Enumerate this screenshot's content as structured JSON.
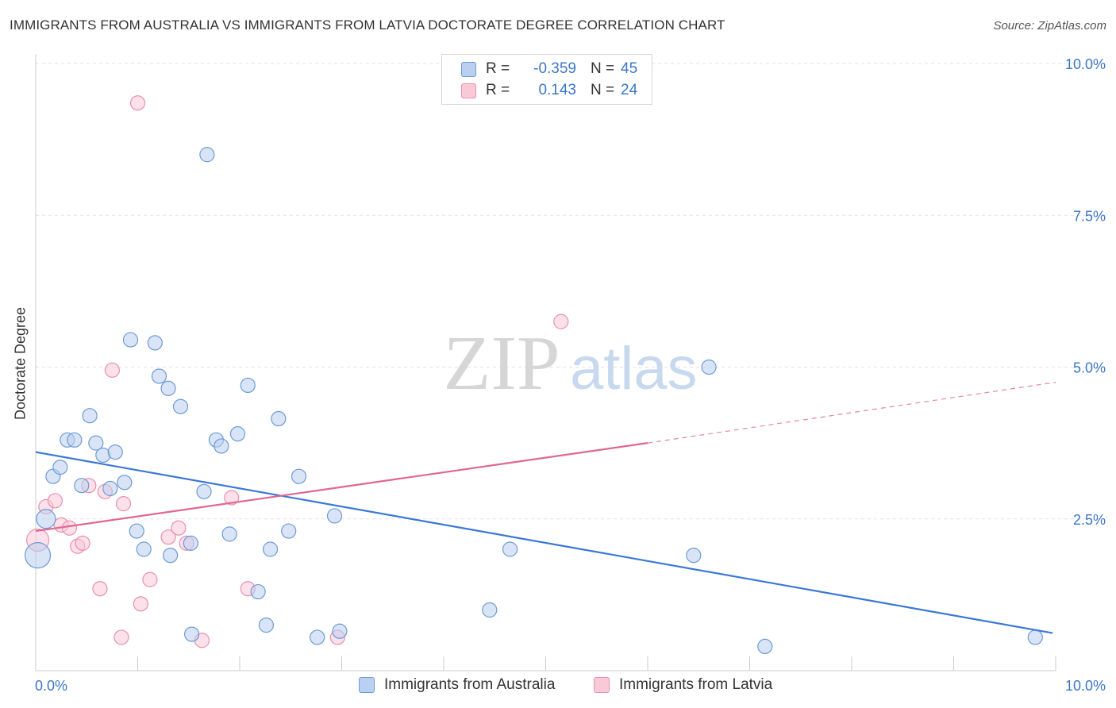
{
  "title": "IMMIGRANTS FROM AUSTRALIA VS IMMIGRANTS FROM LATVIA DOCTORATE DEGREE CORRELATION CHART",
  "source": "Source: ZipAtlas.com",
  "watermark": {
    "zip": "ZIP",
    "atlas": "atlas"
  },
  "legend": {
    "r_label": "R =",
    "n_label": "N =",
    "rows": [
      {
        "r": "-0.359",
        "n": "45",
        "fill": "#b9d0f0",
        "stroke": "#6d9ad6"
      },
      {
        "r": "0.143",
        "n": "24",
        "fill": "#f9c9d8",
        "stroke": "#e890ac"
      }
    ]
  },
  "bottom_legend": {
    "australia": "Immigrants from Australia",
    "latvia": "Immigrants from Latvia"
  },
  "chart_data": {
    "type": "scatter",
    "title": "IMMIGRANTS FROM AUSTRALIA VS IMMIGRANTS FROM LATVIA DOCTORATE DEGREE CORRELATION CHART",
    "xlabel": "",
    "ylabel": "Doctorate Degree",
    "xlim": [
      0,
      10
    ],
    "ylim": [
      0,
      10
    ],
    "x_tick_labels": [
      {
        "value": 0,
        "label": "0.0%"
      },
      {
        "value": 10,
        "label": "10.0%"
      }
    ],
    "y_tick_labels": [
      {
        "value": 2.5,
        "label": "2.5%"
      },
      {
        "value": 5.0,
        "label": "5.0%"
      },
      {
        "value": 7.5,
        "label": "7.5%"
      },
      {
        "value": 10.0,
        "label": "10.0%"
      }
    ],
    "series": [
      {
        "name": "Immigrants from Australia",
        "color": "#6d9ad6",
        "fill": "#b9d0f0",
        "line_color": "#3a78d4",
        "points": [
          [
            0.02,
            1.9,
            16
          ],
          [
            0.1,
            2.5,
            12
          ],
          [
            0.17,
            3.2,
            9
          ],
          [
            0.24,
            3.35,
            9
          ],
          [
            0.31,
            3.8,
            9
          ],
          [
            0.38,
            3.8,
            9
          ],
          [
            0.45,
            3.05,
            9
          ],
          [
            0.53,
            4.2,
            9
          ],
          [
            0.59,
            3.75,
            9
          ],
          [
            0.66,
            3.55,
            9
          ],
          [
            0.73,
            3.0,
            9
          ],
          [
            0.78,
            3.6,
            9
          ],
          [
            0.87,
            3.1,
            9
          ],
          [
            0.93,
            5.45,
            9
          ],
          [
            0.99,
            2.3,
            9
          ],
          [
            1.06,
            2.0,
            9
          ],
          [
            1.17,
            5.4,
            9
          ],
          [
            1.21,
            4.85,
            9
          ],
          [
            1.3,
            4.65,
            9
          ],
          [
            1.32,
            1.9,
            9
          ],
          [
            1.42,
            4.35,
            9
          ],
          [
            1.52,
            2.1,
            9
          ],
          [
            1.53,
            0.6,
            9
          ],
          [
            1.65,
            2.95,
            9
          ],
          [
            1.68,
            8.5,
            9
          ],
          [
            1.77,
            3.8,
            9
          ],
          [
            1.82,
            3.7,
            9
          ],
          [
            1.9,
            2.25,
            9
          ],
          [
            1.98,
            3.9,
            9
          ],
          [
            2.08,
            4.7,
            9
          ],
          [
            2.18,
            1.3,
            9
          ],
          [
            2.26,
            0.75,
            9
          ],
          [
            2.3,
            2.0,
            9
          ],
          [
            2.38,
            4.15,
            9
          ],
          [
            2.48,
            2.3,
            9
          ],
          [
            2.58,
            3.2,
            9
          ],
          [
            2.76,
            0.55,
            9
          ],
          [
            2.93,
            2.55,
            9
          ],
          [
            2.98,
            0.65,
            9
          ],
          [
            4.45,
            1.0,
            9
          ],
          [
            4.65,
            2.0,
            9
          ],
          [
            6.45,
            1.9,
            9
          ],
          [
            6.6,
            5.0,
            9
          ],
          [
            7.15,
            0.4,
            9
          ],
          [
            9.8,
            0.55,
            9
          ]
        ],
        "trend": {
          "x_start": 0.0,
          "y_start": 3.6,
          "x_end": 9.97,
          "y_end": 0.62
        }
      },
      {
        "name": "Immigrants from Latvia",
        "color": "#e890ac",
        "fill": "#f9c9d8",
        "line_color": "#e0678f",
        "points": [
          [
            0.02,
            2.15,
            14
          ],
          [
            0.1,
            2.7,
            9
          ],
          [
            0.19,
            2.8,
            9
          ],
          [
            0.25,
            2.4,
            9
          ],
          [
            0.33,
            2.35,
            9
          ],
          [
            0.41,
            2.05,
            9
          ],
          [
            0.46,
            2.1,
            9
          ],
          [
            0.52,
            3.05,
            9
          ],
          [
            0.63,
            1.35,
            9
          ],
          [
            0.68,
            2.95,
            9
          ],
          [
            0.75,
            4.95,
            9
          ],
          [
            0.84,
            0.55,
            9
          ],
          [
            0.86,
            2.75,
            9
          ],
          [
            1.0,
            9.35,
            9
          ],
          [
            1.03,
            1.1,
            9
          ],
          [
            1.12,
            1.5,
            9
          ],
          [
            1.3,
            2.2,
            9
          ],
          [
            1.4,
            2.35,
            9
          ],
          [
            1.48,
            2.1,
            9
          ],
          [
            1.63,
            0.5,
            9
          ],
          [
            1.92,
            2.85,
            9
          ],
          [
            2.08,
            1.35,
            9
          ],
          [
            2.96,
            0.55,
            9
          ],
          [
            5.15,
            5.75,
            9
          ]
        ],
        "trend": {
          "x_start": 0.0,
          "y_start": 2.3,
          "x_end": 6.0,
          "y_end": 3.75,
          "dash_to_x": 10.0,
          "dash_to_y": 4.75
        }
      }
    ],
    "grid": true,
    "legend_position": "top-center"
  }
}
